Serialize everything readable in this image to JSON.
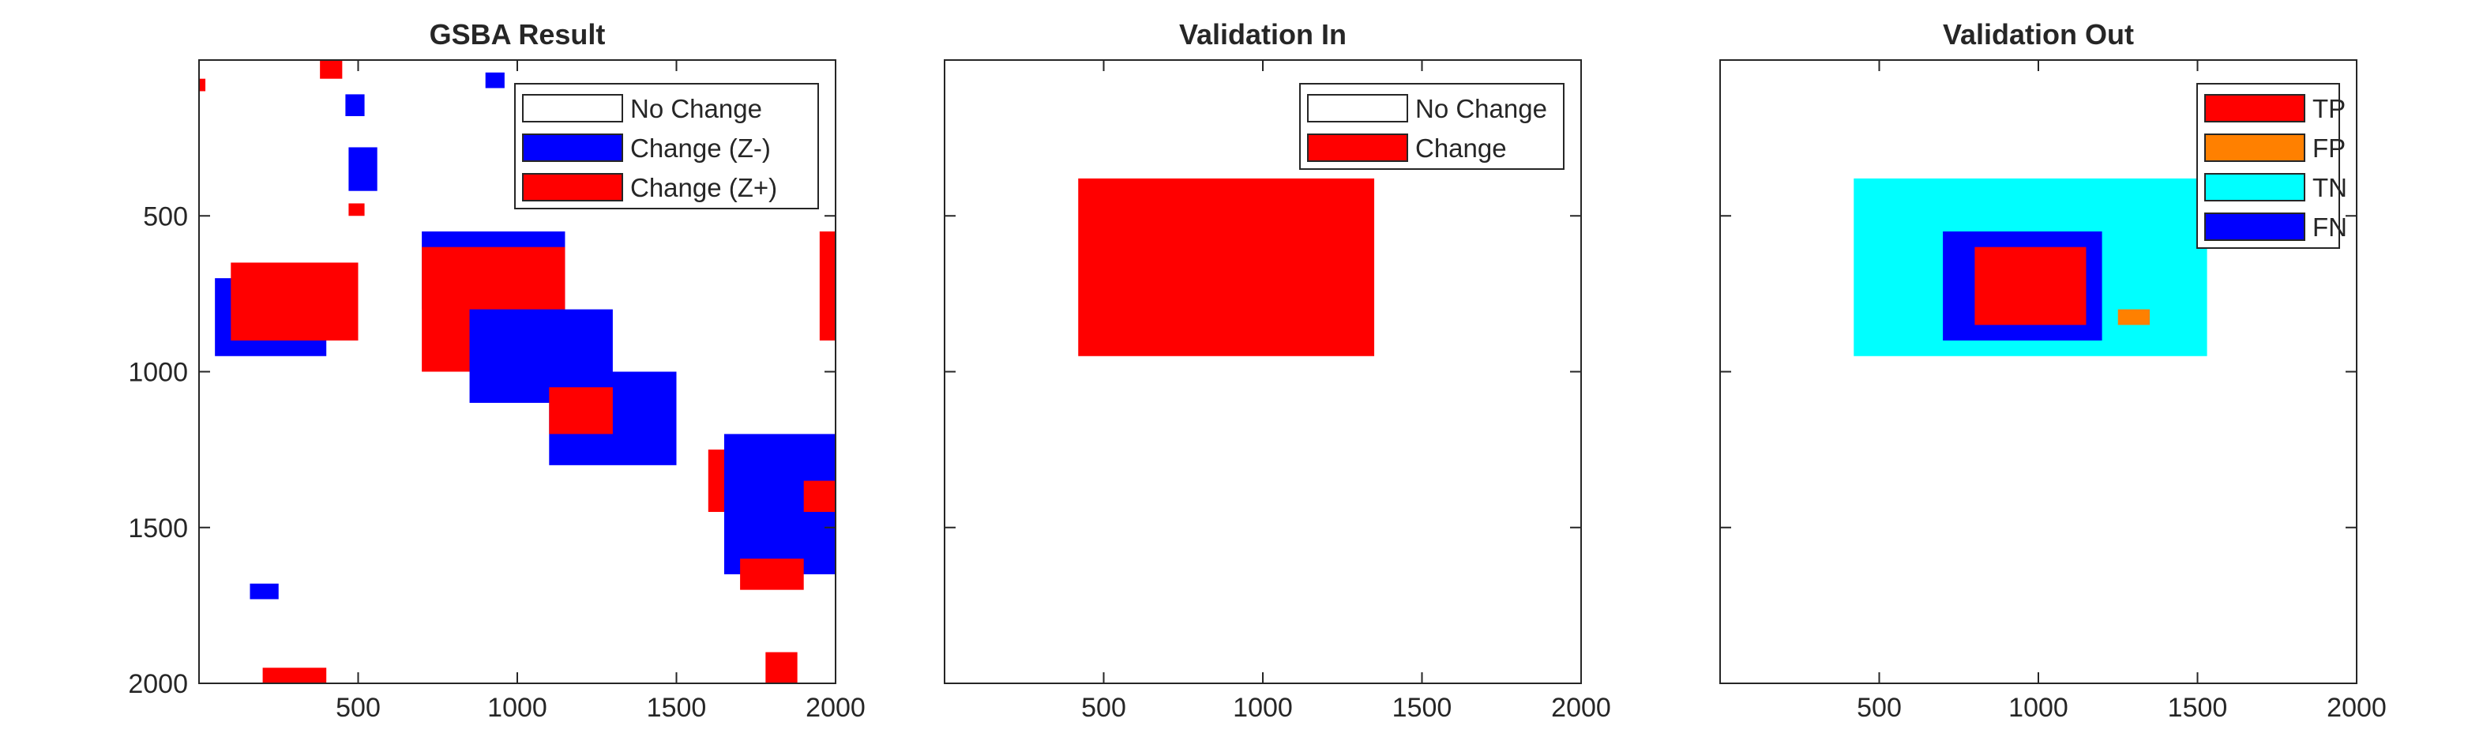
{
  "figure": {
    "colors": {
      "no_change": "#ffffff",
      "change_neg": "#0000ff",
      "change_pos": "#ff0000",
      "tp": "#ff0000",
      "fp": "#ff8000",
      "tn": "#00ffff",
      "fn": "#0000ff",
      "axis": "#262626"
    }
  },
  "chart_data": [
    {
      "type": "heatmap",
      "title": "GSBA Result",
      "xlim": [
        0,
        2000
      ],
      "ylim": [
        2000,
        0
      ],
      "xticks": [
        "500",
        "1000",
        "1500",
        "2000"
      ],
      "yticks": [
        "500",
        "1000",
        "1500",
        "2000"
      ],
      "show_yticklabels": true,
      "legend": {
        "placement": "top-right",
        "entries": [
          {
            "label": "No Change",
            "color": "#ffffff"
          },
          {
            "label": "Change (Z-)",
            "color": "#0000ff"
          },
          {
            "label": "Change (Z+)",
            "color": "#ff0000"
          }
        ]
      },
      "regions": [
        {
          "class": "Change (Z+)",
          "x": [
            380,
            450
          ],
          "y": [
            0,
            60
          ]
        },
        {
          "class": "Change (Z+)",
          "x": [
            0,
            20
          ],
          "y": [
            60,
            100
          ]
        },
        {
          "class": "Change (Z-)",
          "x": [
            460,
            520
          ],
          "y": [
            110,
            180
          ]
        },
        {
          "class": "Change (Z-)",
          "x": [
            470,
            560
          ],
          "y": [
            280,
            420
          ]
        },
        {
          "class": "Change (Z-)",
          "x": [
            900,
            960
          ],
          "y": [
            40,
            90
          ]
        },
        {
          "class": "Change (Z+)",
          "x": [
            470,
            520
          ],
          "y": [
            460,
            500
          ]
        },
        {
          "class": "Change (Z-)",
          "x": [
            700,
            1150
          ],
          "y": [
            550,
            800
          ]
        },
        {
          "class": "Change (Z+)",
          "x": [
            700,
            1150
          ],
          "y": [
            600,
            1000
          ]
        },
        {
          "class": "Change (Z-)",
          "x": [
            850,
            1300
          ],
          "y": [
            800,
            1100
          ]
        },
        {
          "class": "Change (Z-)",
          "x": [
            1100,
            1500
          ],
          "y": [
            1000,
            1300
          ]
        },
        {
          "class": "Change (Z+)",
          "x": [
            1100,
            1300
          ],
          "y": [
            1050,
            1200
          ]
        },
        {
          "class": "Change (Z+)",
          "x": [
            1600,
            1800
          ],
          "y": [
            1250,
            1450
          ]
        },
        {
          "class": "Change (Z-)",
          "x": [
            1650,
            2000
          ],
          "y": [
            1200,
            1650
          ]
        },
        {
          "class": "Change (Z+)",
          "x": [
            1900,
            2000
          ],
          "y": [
            1350,
            1450
          ]
        },
        {
          "class": "Change (Z-)",
          "x": [
            50,
            400
          ],
          "y": [
            700,
            950
          ]
        },
        {
          "class": "Change (Z+)",
          "x": [
            100,
            500
          ],
          "y": [
            650,
            900
          ]
        },
        {
          "class": "Change (Z+)",
          "x": [
            1700,
            1900
          ],
          "y": [
            1600,
            1700
          ]
        },
        {
          "class": "Change (Z+)",
          "x": [
            1780,
            1880
          ],
          "y": [
            1900,
            2000
          ]
        },
        {
          "class": "Change (Z-)",
          "x": [
            160,
            250
          ],
          "y": [
            1680,
            1730
          ]
        },
        {
          "class": "Change (Z+)",
          "x": [
            200,
            400
          ],
          "y": [
            1950,
            2000
          ]
        },
        {
          "class": "Change (Z+)",
          "x": [
            1950,
            2000
          ],
          "y": [
            550,
            900
          ]
        }
      ]
    },
    {
      "type": "heatmap",
      "title": "Validation In",
      "xlim": [
        0,
        2000
      ],
      "ylim": [
        2000,
        0
      ],
      "xticks": [
        "500",
        "1000",
        "1500",
        "2000"
      ],
      "yticks": [
        "500",
        "1000",
        "1500",
        "2000"
      ],
      "show_yticklabels": false,
      "legend": {
        "placement": "top-right",
        "entries": [
          {
            "label": "No Change",
            "color": "#ffffff"
          },
          {
            "label": "Change",
            "color": "#ff0000"
          }
        ]
      },
      "regions": [
        {
          "class": "Change",
          "x": [
            420,
            1350
          ],
          "y": [
            380,
            950
          ]
        },
        {
          "class": "Change",
          "x": [
            700,
            1200
          ],
          "y": [
            550,
            900
          ]
        }
      ]
    },
    {
      "type": "heatmap",
      "title": "Validation Out",
      "xlim": [
        0,
        2000
      ],
      "ylim": [
        2000,
        0
      ],
      "xticks": [
        "500",
        "1000",
        "1500",
        "2000"
      ],
      "yticks": [
        "500",
        "1000",
        "1500",
        "2000"
      ],
      "show_yticklabels": false,
      "legend": {
        "placement": "top-right",
        "entries": [
          {
            "label": "TP",
            "color": "#ff0000"
          },
          {
            "label": "FP",
            "color": "#ff8000"
          },
          {
            "label": "TN",
            "color": "#00ffff"
          },
          {
            "label": "FN",
            "color": "#0000ff"
          }
        ]
      },
      "regions": [
        {
          "class": "TN",
          "x": [
            420,
            1530
          ],
          "y": [
            380,
            950
          ]
        },
        {
          "class": "FN",
          "x": [
            700,
            1200
          ],
          "y": [
            550,
            900
          ]
        },
        {
          "class": "TP",
          "x": [
            800,
            1150
          ],
          "y": [
            600,
            850
          ]
        },
        {
          "class": "FP",
          "x": [
            1250,
            1350
          ],
          "y": [
            800,
            850
          ]
        }
      ]
    }
  ]
}
